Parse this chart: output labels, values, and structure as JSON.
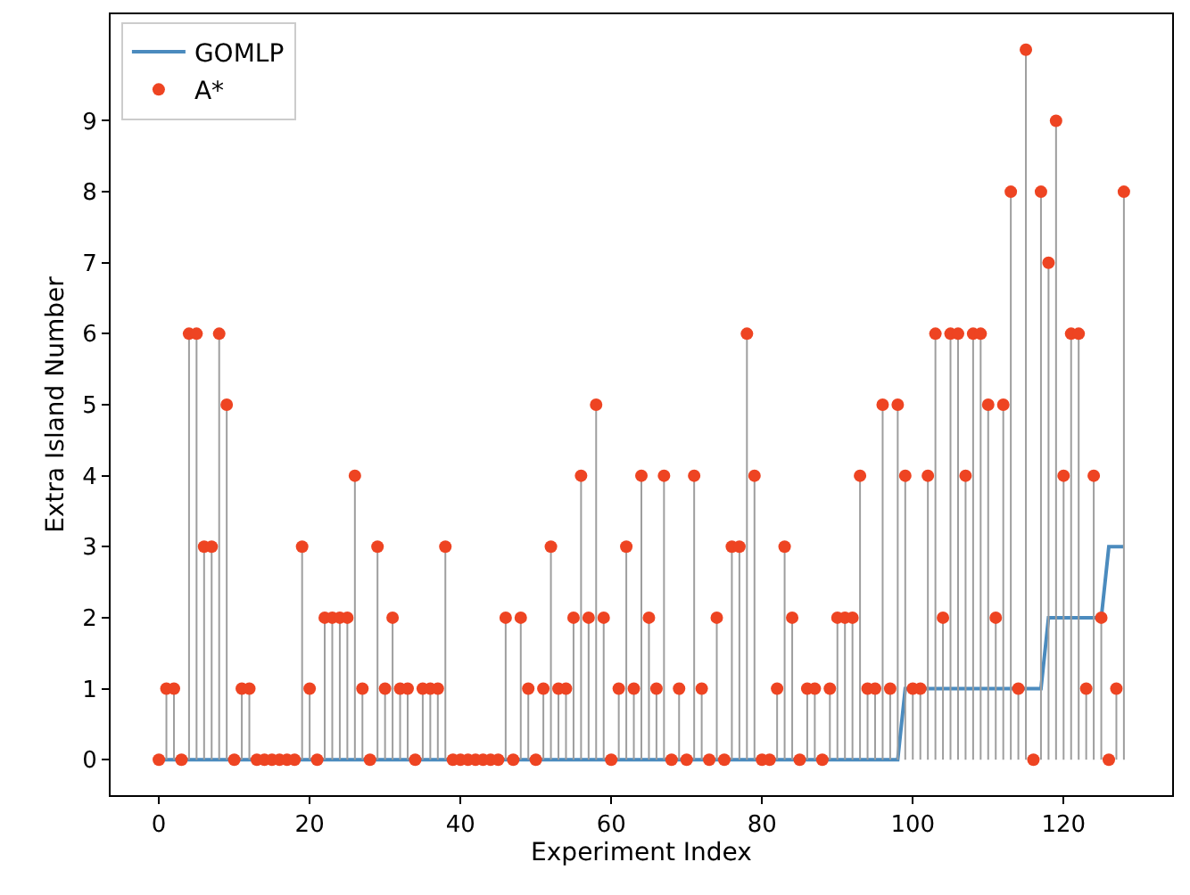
{
  "chart_data": {
    "type": "line",
    "xlabel": "Experiment Index",
    "ylabel": "Extra Island Number",
    "x": [
      0,
      1,
      2,
      3,
      4,
      5,
      6,
      7,
      8,
      9,
      10,
      11,
      12,
      13,
      14,
      15,
      16,
      17,
      18,
      19,
      20,
      21,
      22,
      23,
      24,
      25,
      26,
      27,
      28,
      29,
      30,
      31,
      32,
      33,
      34,
      35,
      36,
      37,
      38,
      39,
      40,
      41,
      42,
      43,
      44,
      45,
      46,
      47,
      48,
      49,
      50,
      51,
      52,
      53,
      54,
      55,
      56,
      57,
      58,
      59,
      60,
      61,
      62,
      63,
      64,
      65,
      66,
      67,
      68,
      69,
      70,
      71,
      72,
      73,
      74,
      75,
      76,
      77,
      78,
      79,
      80,
      81,
      82,
      83,
      84,
      85,
      86,
      87,
      88,
      89,
      90,
      91,
      92,
      93,
      94,
      95,
      96,
      97,
      98,
      99,
      100,
      101,
      102,
      103,
      104,
      105,
      106,
      107,
      108,
      109,
      110,
      111,
      112,
      113,
      114,
      115,
      116,
      117,
      118,
      119,
      120,
      121,
      122,
      123,
      124,
      125,
      126,
      127,
      128
    ],
    "series": [
      {
        "name": "GOMLP",
        "color": "#4b8bbe",
        "values": [
          0,
          0,
          0,
          0,
          0,
          0,
          0,
          0,
          0,
          0,
          0,
          0,
          0,
          0,
          0,
          0,
          0,
          0,
          0,
          0,
          0,
          0,
          0,
          0,
          0,
          0,
          0,
          0,
          0,
          0,
          0,
          0,
          0,
          0,
          0,
          0,
          0,
          0,
          0,
          0,
          0,
          0,
          0,
          0,
          0,
          0,
          0,
          0,
          0,
          0,
          0,
          0,
          0,
          0,
          0,
          0,
          0,
          0,
          0,
          0,
          0,
          0,
          0,
          0,
          0,
          0,
          0,
          0,
          0,
          0,
          0,
          0,
          0,
          0,
          0,
          0,
          0,
          0,
          0,
          0,
          0,
          0,
          0,
          0,
          0,
          0,
          0,
          0,
          0,
          0,
          0,
          0,
          0,
          0,
          0,
          0,
          0,
          0,
          0,
          1,
          1,
          1,
          1,
          1,
          1,
          1,
          1,
          1,
          1,
          1,
          1,
          1,
          1,
          1,
          1,
          1,
          1,
          1,
          2,
          2,
          2,
          2,
          2,
          2,
          2,
          2,
          3,
          3,
          3
        ]
      },
      {
        "name": "A*",
        "type": "lollipop",
        "marker": "circle",
        "color": "#ee4422",
        "values": [
          0,
          1,
          1,
          0,
          6,
          6,
          3,
          3,
          6,
          5,
          0,
          1,
          1,
          0,
          0,
          0,
          0,
          0,
          0,
          3,
          1,
          0,
          2,
          2,
          2,
          2,
          4,
          1,
          0,
          3,
          1,
          2,
          1,
          1,
          0,
          1,
          1,
          1,
          3,
          0,
          0,
          0,
          0,
          0,
          0,
          0,
          2,
          0,
          2,
          1,
          0,
          1,
          3,
          1,
          1,
          2,
          4,
          2,
          5,
          2,
          0,
          1,
          3,
          1,
          4,
          2,
          1,
          4,
          0,
          1,
          0,
          4,
          1,
          0,
          2,
          0,
          3,
          3,
          6,
          4,
          0,
          0,
          1,
          3,
          2,
          0,
          1,
          1,
          0,
          1,
          2,
          2,
          2,
          4,
          1,
          1,
          5,
          1,
          5,
          4,
          1,
          1,
          4,
          6,
          2,
          6,
          6,
          4,
          6,
          6,
          5,
          2,
          5,
          8,
          1,
          10,
          0,
          8,
          7,
          9,
          4,
          6,
          6,
          1,
          4,
          2,
          0,
          1,
          8
        ]
      }
    ],
    "xlim": [
      -6.4,
      134.4
    ],
    "xticks": [
      0,
      20,
      40,
      60,
      80,
      100,
      120
    ],
    "ylim": [
      -0.5,
      10.5
    ],
    "yticks": [
      0,
      1,
      2,
      3,
      4,
      5,
      6,
      7,
      8,
      9
    ],
    "legend": "top left"
  }
}
